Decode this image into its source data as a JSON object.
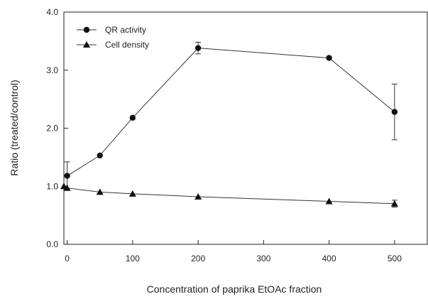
{
  "chart_data": {
    "type": "line",
    "xlabel": "Concentration of paprika EtOAc fraction",
    "ylabel": "Ratio (treated/control)",
    "xlim": [
      -5,
      550
    ],
    "ylim": [
      0,
      4.0
    ],
    "xticks": [
      0,
      100,
      200,
      300,
      400,
      500
    ],
    "yticks": [
      0,
      1.0,
      2.0,
      3.0,
      4.0
    ],
    "xtick_labels": [
      "0",
      "100",
      "200",
      "300",
      "400",
      "500"
    ],
    "ytick_labels": [
      "0.0",
      "1.0",
      "2.0",
      "3.0",
      "4.0"
    ],
    "grid": false,
    "legend": "top-left",
    "series": [
      {
        "name": "QR activity",
        "marker": "circle",
        "x": [
          0,
          50,
          100,
          200,
          400,
          500
        ],
        "y": [
          1.18,
          1.53,
          2.18,
          3.38,
          3.21,
          2.28
        ],
        "err": [
          0.24,
          0,
          0,
          0.1,
          0,
          0.48
        ]
      },
      {
        "name": "Cell density",
        "marker": "triangle",
        "x": [
          -5,
          0,
          50,
          100,
          200,
          400,
          500
        ],
        "y": [
          1.0,
          0.97,
          0.9,
          0.87,
          0.82,
          0.74,
          0.7
        ],
        "err": [
          0,
          0,
          0,
          0,
          0,
          0,
          0.06
        ]
      }
    ]
  }
}
